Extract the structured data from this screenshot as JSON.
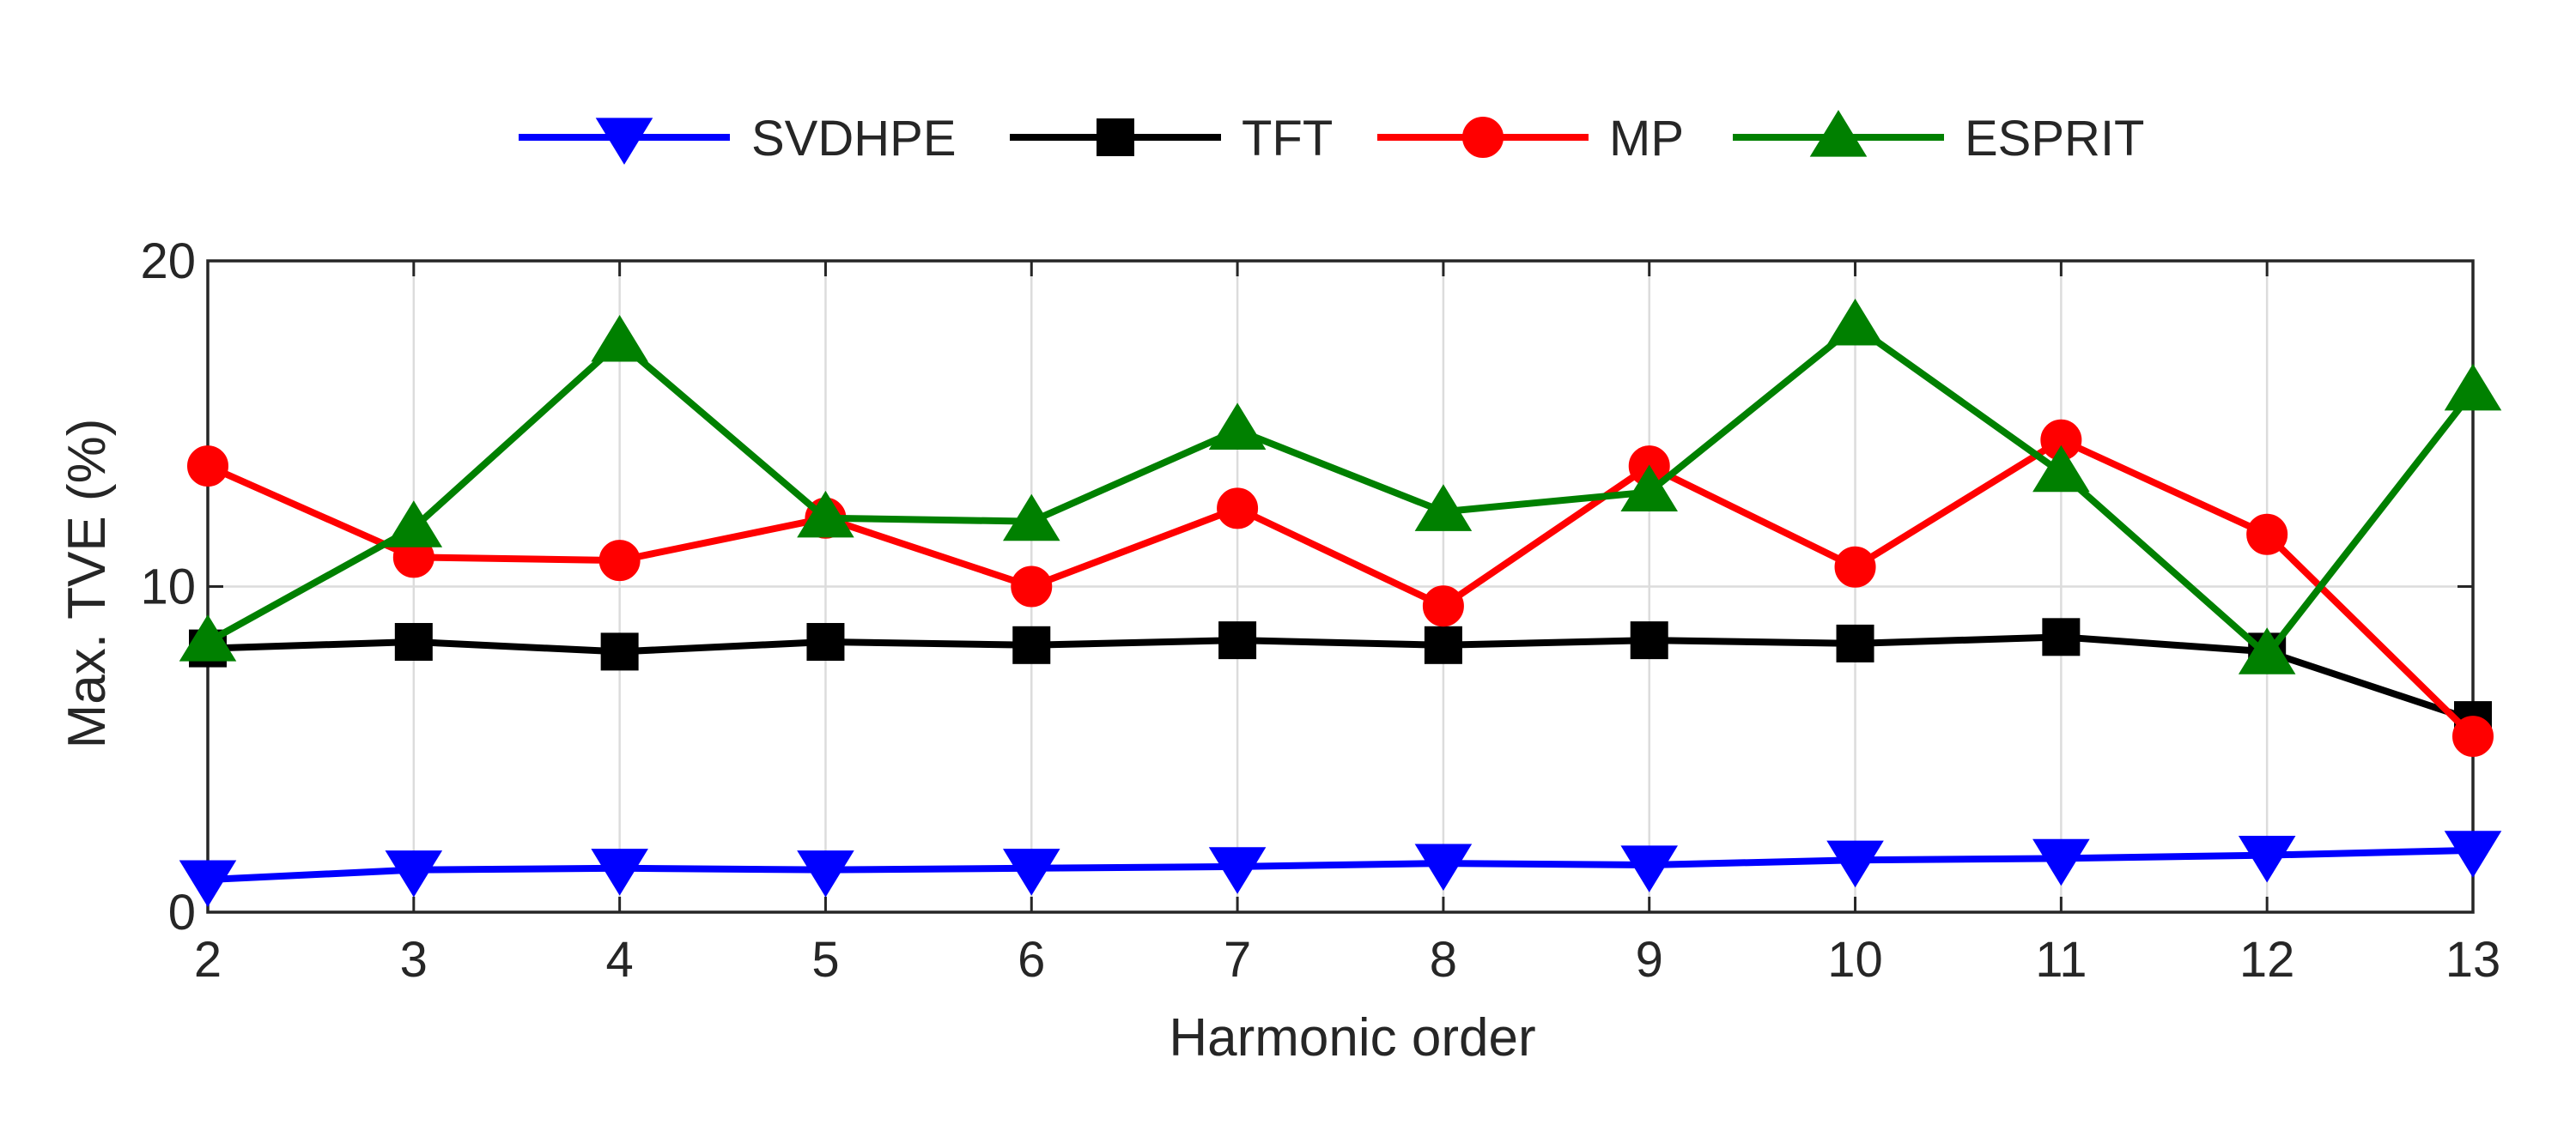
{
  "chart_data": {
    "type": "line",
    "title": "",
    "xlabel": "Harmonic order",
    "ylabel": "Max. TVE (%)",
    "x": [
      2,
      3,
      4,
      5,
      6,
      7,
      8,
      9,
      10,
      11,
      12,
      13
    ],
    "xlim": [
      2,
      13
    ],
    "ylim": [
      0,
      20
    ],
    "x_ticks": [
      "2",
      "3",
      "4",
      "5",
      "6",
      "7",
      "8",
      "9",
      "10",
      "11",
      "12",
      "13"
    ],
    "y_ticks": [
      "0",
      "10",
      "20"
    ],
    "grid": true,
    "legend_position": "top-center",
    "series": [
      {
        "name": "SVDHPE",
        "color": "#0000ff",
        "marker": "triangle-down",
        "values": [
          1.0,
          1.3,
          1.35,
          1.3,
          1.35,
          1.4,
          1.5,
          1.45,
          1.6,
          1.65,
          1.75,
          1.9
        ]
      },
      {
        "name": "TFT",
        "color": "#000000",
        "marker": "square",
        "values": [
          8.1,
          8.3,
          8.0,
          8.3,
          8.2,
          8.35,
          8.2,
          8.35,
          8.25,
          8.45,
          8.0,
          5.9
        ]
      },
      {
        "name": "MP",
        "color": "#ff0000",
        "marker": "circle",
        "values": [
          13.7,
          10.9,
          10.8,
          12.1,
          10.0,
          12.4,
          9.4,
          13.7,
          10.6,
          14.5,
          11.6,
          5.4
        ]
      },
      {
        "name": "ESPRIT",
        "color": "#008000",
        "marker": "triangle-up",
        "values": [
          8.3,
          11.8,
          17.5,
          12.1,
          12.0,
          14.8,
          12.3,
          12.9,
          18.0,
          13.5,
          7.9,
          16.0
        ]
      }
    ]
  }
}
